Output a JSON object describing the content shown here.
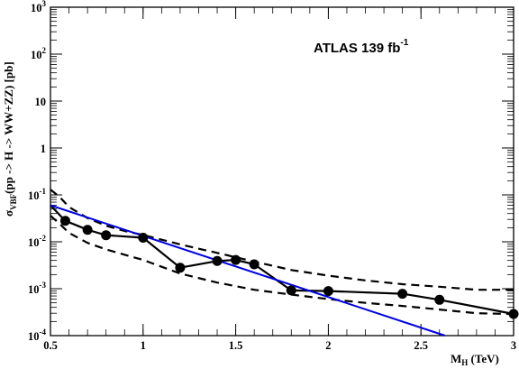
{
  "chart_data": {
    "type": "line",
    "annotation": {
      "main": "ATLAS  139 fb",
      "sup": "-1"
    },
    "xlabel": {
      "main": "M",
      "sub": "H",
      "rest": " (TeV)"
    },
    "ylabel": "σ_VBF(pp -> H -> WW+ZZ) [pb]",
    "ylabel_parts": {
      "sym": "σ",
      "sub": "VBF",
      "rest": "(pp -> H -> WW+ZZ) [pb]"
    },
    "xlim": [
      0.5,
      3.0
    ],
    "ylim": [
      0.0001,
      1000
    ],
    "yscale": "log",
    "grid": false,
    "x_ticks": [
      {
        "v": 0.5,
        "label": "0.5"
      },
      {
        "v": 1.0,
        "label": "1"
      },
      {
        "v": 1.5,
        "label": "1.5"
      },
      {
        "v": 2.0,
        "label": "2"
      },
      {
        "v": 2.5,
        "label": "2.5"
      },
      {
        "v": 3.0,
        "label": "3"
      }
    ],
    "y_ticks": [
      {
        "v": 0.0001,
        "base": "10",
        "exp": "-4"
      },
      {
        "v": 0.001,
        "base": "10",
        "exp": "-3"
      },
      {
        "v": 0.01,
        "base": "10",
        "exp": "-2"
      },
      {
        "v": 0.1,
        "base": "10",
        "exp": "-1"
      },
      {
        "v": 1,
        "base": "1",
        "exp": ""
      },
      {
        "v": 10,
        "base": "10",
        "exp": ""
      },
      {
        "v": 100,
        "base": "10",
        "exp": "2"
      },
      {
        "v": 1000,
        "base": "10",
        "exp": "3"
      }
    ],
    "series": [
      {
        "style": "observed",
        "color": "#000000",
        "x": [
          0.5,
          0.58,
          0.7,
          0.8,
          1.0,
          1.2,
          1.4,
          1.5,
          1.6,
          1.8,
          2.0,
          2.4,
          2.6,
          3.0
        ],
        "y": [
          0.06,
          0.028,
          0.018,
          0.0138,
          0.0122,
          0.0028,
          0.0039,
          0.0041,
          0.0033,
          0.00092,
          0.00089,
          0.00078,
          0.00058,
          0.00029
        ],
        "markers_x": [
          0.58,
          0.7,
          0.8,
          1.0,
          1.2,
          1.4,
          1.5,
          1.6,
          1.8,
          2.0,
          2.4,
          2.6,
          3.0
        ]
      },
      {
        "style": "band-upper",
        "color": "#000000",
        "x": [
          0.5,
          0.55,
          0.6,
          0.7,
          0.8,
          0.9,
          1.0,
          1.2,
          1.4,
          1.6,
          1.8,
          2.0,
          2.2,
          2.4,
          2.6,
          2.8,
          3.0
        ],
        "y": [
          0.13,
          0.09,
          0.055,
          0.032,
          0.022,
          0.017,
          0.014,
          0.0088,
          0.0058,
          0.0038,
          0.0025,
          0.0019,
          0.0015,
          0.00125,
          0.0011,
          0.00095,
          0.00095
        ]
      },
      {
        "style": "band-lower",
        "color": "#000000",
        "x": [
          0.5,
          0.55,
          0.6,
          0.7,
          0.8,
          0.9,
          1.0,
          1.2,
          1.4,
          1.6,
          1.8,
          2.0,
          2.2,
          2.4,
          2.6,
          2.8,
          3.0
        ],
        "y": [
          0.036,
          0.024,
          0.0155,
          0.0095,
          0.0069,
          0.0053,
          0.0041,
          0.0021,
          0.00135,
          0.00095,
          0.00075,
          0.0006,
          0.0005,
          0.00043,
          0.00036,
          0.0003,
          0.00029
        ]
      },
      {
        "style": "theory",
        "color": "#0000dd",
        "x": [
          0.5,
          2.63
        ],
        "y": [
          0.06,
          0.0001
        ]
      }
    ]
  }
}
